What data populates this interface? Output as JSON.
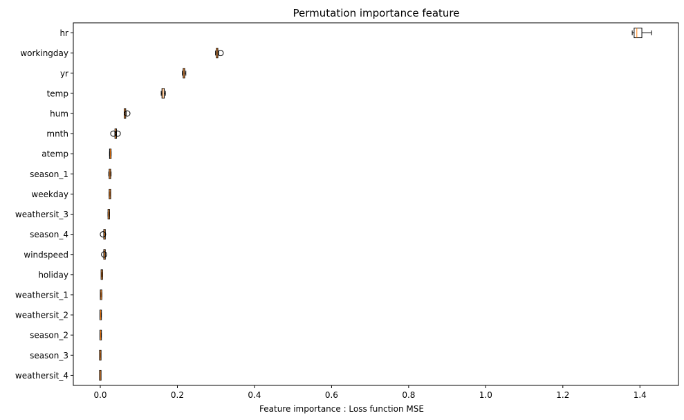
{
  "chart_data": {
    "type": "boxplot",
    "title": "Permutation importance feature",
    "xlabel": "Feature importance : Loss function MSE",
    "ylabel": "",
    "xlim": [
      -0.07,
      1.5
    ],
    "xticks": [
      "0.0",
      "0.2",
      "0.4",
      "0.6",
      "0.8",
      "1.0",
      "1.2",
      "1.4"
    ],
    "xtick_values": [
      0.0,
      0.2,
      0.4,
      0.6,
      0.8,
      1.0,
      1.2,
      1.4
    ],
    "grid": false,
    "colors": {
      "box_edge": "#000000",
      "median": "#ff7f0e",
      "flier": "#000000"
    },
    "categories": [
      "hr",
      "workingday",
      "yr",
      "temp",
      "hum",
      "mnth",
      "atemp",
      "season_1",
      "weekday",
      "weathersit_3",
      "season_4",
      "windspeed",
      "holiday",
      "weathersit_1",
      "weathersit_2",
      "season_2",
      "season_3",
      "weathersit_4"
    ],
    "boxes": [
      {
        "feature": "hr",
        "whislo": 1.38,
        "q1": 1.385,
        "med": 1.392,
        "q3": 1.405,
        "whishi": 1.43,
        "fliers": []
      },
      {
        "feature": "workingday",
        "whislo": 0.299,
        "q1": 0.301,
        "med": 0.303,
        "q3": 0.305,
        "whishi": 0.307,
        "fliers": [
          0.312
        ]
      },
      {
        "feature": "yr",
        "whislo": 0.213,
        "q1": 0.215,
        "med": 0.217,
        "q3": 0.219,
        "whishi": 0.222,
        "fliers": []
      },
      {
        "feature": "temp",
        "whislo": 0.158,
        "q1": 0.16,
        "med": 0.163,
        "q3": 0.166,
        "whishi": 0.169,
        "fliers": []
      },
      {
        "feature": "hum",
        "whislo": 0.062,
        "q1": 0.063,
        "med": 0.064,
        "q3": 0.066,
        "whishi": 0.067,
        "fliers": [
          0.07
        ]
      },
      {
        "feature": "mnth",
        "whislo": 0.038,
        "q1": 0.039,
        "med": 0.04,
        "q3": 0.041,
        "whishi": 0.042,
        "fliers": [
          0.034,
          0.045
        ]
      },
      {
        "feature": "atemp",
        "whislo": 0.024,
        "q1": 0.025,
        "med": 0.026,
        "q3": 0.027,
        "whishi": 0.028,
        "fliers": []
      },
      {
        "feature": "season_1",
        "whislo": 0.022,
        "q1": 0.024,
        "med": 0.025,
        "q3": 0.026,
        "whishi": 0.028,
        "fliers": []
      },
      {
        "feature": "weekday",
        "whislo": 0.023,
        "q1": 0.024,
        "med": 0.025,
        "q3": 0.025,
        "whishi": 0.026,
        "fliers": []
      },
      {
        "feature": "weathersit_3",
        "whislo": 0.02,
        "q1": 0.021,
        "med": 0.022,
        "q3": 0.023,
        "whishi": 0.024,
        "fliers": []
      },
      {
        "feature": "season_4",
        "whislo": 0.009,
        "q1": 0.01,
        "med": 0.011,
        "q3": 0.012,
        "whishi": 0.013,
        "fliers": [
          0.007
        ]
      },
      {
        "feature": "windspeed",
        "whislo": 0.009,
        "q1": 0.01,
        "med": 0.011,
        "q3": 0.012,
        "whishi": 0.013,
        "fliers": [
          0.01
        ]
      },
      {
        "feature": "holiday",
        "whislo": 0.003,
        "q1": 0.004,
        "med": 0.004,
        "q3": 0.005,
        "whishi": 0.006,
        "fliers": []
      },
      {
        "feature": "weathersit_1",
        "whislo": 0.001,
        "q1": 0.002,
        "med": 0.002,
        "q3": 0.003,
        "whishi": 0.004,
        "fliers": []
      },
      {
        "feature": "weathersit_2",
        "whislo": 0.0,
        "q1": 0.001,
        "med": 0.001,
        "q3": 0.002,
        "whishi": 0.002,
        "fliers": []
      },
      {
        "feature": "season_2",
        "whislo": 0.0,
        "q1": 0.0,
        "med": 0.001,
        "q3": 0.001,
        "whishi": 0.002,
        "fliers": []
      },
      {
        "feature": "season_3",
        "whislo": 0.0,
        "q1": 0.0,
        "med": 0.0,
        "q3": 0.001,
        "whishi": 0.001,
        "fliers": []
      },
      {
        "feature": "weathersit_4",
        "whislo": 0.0,
        "q1": 0.0,
        "med": 0.0,
        "q3": 0.0,
        "whishi": 0.0,
        "fliers": []
      }
    ]
  }
}
